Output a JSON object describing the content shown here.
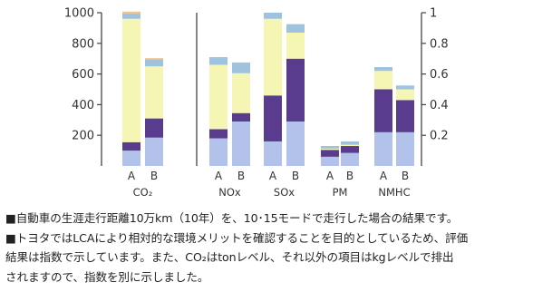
{
  "chart_data": {
    "type": "bar",
    "stacked": true,
    "left_axis": {
      "ticks": [
        "200",
        "400",
        "600",
        "800",
        "1000"
      ],
      "ylim": [
        0,
        1000
      ]
    },
    "right_axis": {
      "ticks": [
        "0.2",
        "0.4",
        "0.6",
        "0.8",
        "1"
      ],
      "ylim": [
        0,
        1
      ]
    },
    "colors": {
      "layer1": "#b3c2ea",
      "layer2": "#5a3c8e",
      "layer3": "#f5f5b4",
      "layer4": "#9fc3df",
      "layer5": "#f2c27e",
      "axis": "#444444"
    },
    "groups": [
      {
        "label": "CO₂",
        "axis": "left",
        "bars": [
          {
            "label": "A",
            "layers": [
              100,
              55,
              805,
              35,
              12
            ]
          },
          {
            "label": "B",
            "layers": [
              185,
              125,
              340,
              45,
              8
            ]
          }
        ]
      },
      {
        "label": "NOx",
        "axis": "right",
        "bars": [
          {
            "label": "A",
            "layers": [
              0.18,
              0.06,
              0.42,
              0.05,
              0
            ]
          },
          {
            "label": "B",
            "layers": [
              0.29,
              0.055,
              0.26,
              0.07,
              0
            ]
          }
        ]
      },
      {
        "label": "SOx",
        "axis": "right",
        "bars": [
          {
            "label": "A",
            "layers": [
              0.16,
              0.3,
              0.5,
              0.04,
              0
            ]
          },
          {
            "label": "B",
            "layers": [
              0.29,
              0.41,
              0.17,
              0.055,
              0
            ]
          }
        ]
      },
      {
        "label": "PM",
        "axis": "right",
        "bars": [
          {
            "label": "A",
            "layers": [
              0.06,
              0.045,
              0.008,
              0.017,
              0
            ]
          },
          {
            "label": "B",
            "layers": [
              0.085,
              0.045,
              0.008,
              0.022,
              0
            ]
          }
        ]
      },
      {
        "label": "NMHC",
        "axis": "right",
        "bars": [
          {
            "label": "A",
            "layers": [
              0.22,
              0.28,
              0.12,
              0.025,
              0
            ]
          },
          {
            "label": "B",
            "layers": [
              0.22,
              0.21,
              0.07,
              0.025,
              0
            ]
          }
        ]
      }
    ]
  },
  "notes": [
    "■自動車の生涯走行距離10万km（10年）を、10･15モードで走行した場合の結果です。",
    "■トヨタではLCAにより相対的な環境メリットを確認することを目的としているため、評価",
    "結果は指数で示しています。また、CO₂はtonレベル、それ以外の項目はkgレベルで排出",
    "されますので、指数を別に示しました。"
  ]
}
